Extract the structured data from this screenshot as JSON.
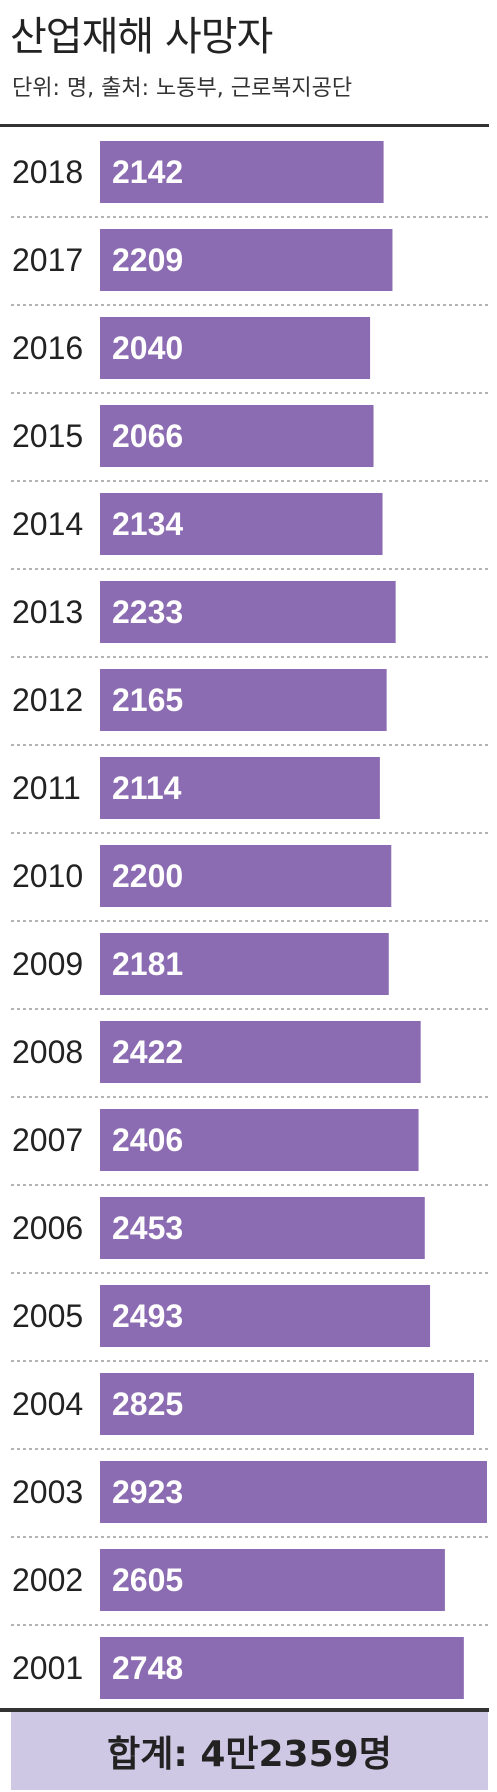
{
  "header": {
    "title": "산업재해 사망자",
    "subtitle": "단위: 명, 출처: 노동부, 근로복지공단"
  },
  "footer": {
    "total_label": "합계: 4만2359명"
  },
  "colors": {
    "bar": "#8b6bb1",
    "bar_label": "#ffffff",
    "year_label": "#222222",
    "divider": "#9a9a9a",
    "footer_bg": "#cfc8e4"
  },
  "chart_data": {
    "type": "bar",
    "orientation": "horizontal",
    "title": "산업재해 사망자",
    "subtitle": "단위: 명, 출처: 노동부, 근로복지공단",
    "categories": [
      "2018",
      "2017",
      "2016",
      "2015",
      "2014",
      "2013",
      "2012",
      "2011",
      "2010",
      "2009",
      "2008",
      "2007",
      "2006",
      "2005",
      "2004",
      "2003",
      "2002",
      "2001"
    ],
    "values": [
      2142,
      2209,
      2040,
      2066,
      2134,
      2233,
      2165,
      2114,
      2200,
      2181,
      2422,
      2406,
      2453,
      2493,
      2825,
      2923,
      2605,
      2748
    ],
    "value_labels": [
      "2142",
      "2209",
      "2040",
      "2066",
      "2134",
      "2233",
      "2165",
      "2114",
      "2200",
      "2181",
      "2422",
      "2406",
      "2453",
      "2493",
      "2825",
      "2923",
      "2605",
      "2748"
    ],
    "xlim": [
      0,
      2923
    ],
    "grid": false,
    "legend": "none"
  }
}
